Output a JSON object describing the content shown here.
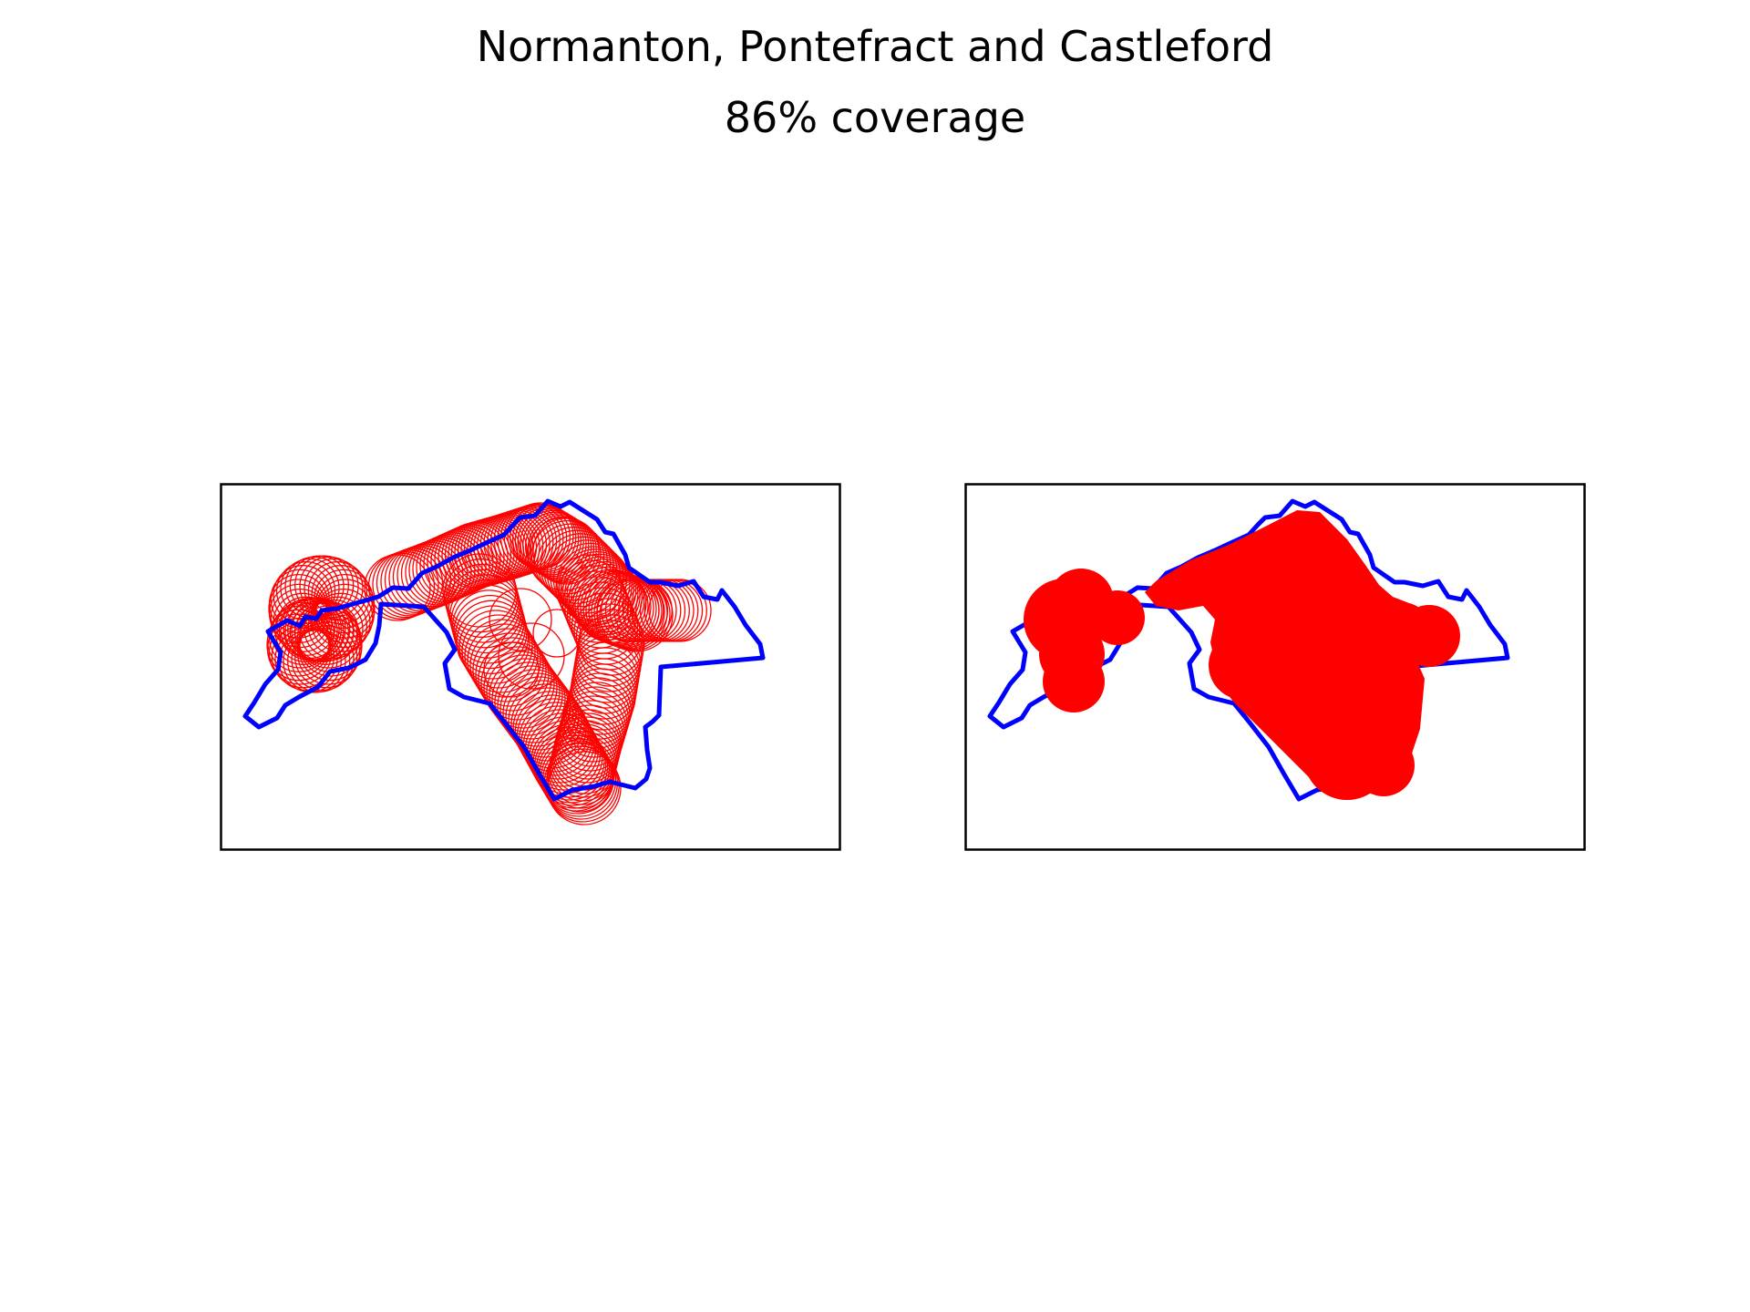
{
  "figure": {
    "title": "Normanton, Pontefract and Castleford",
    "subtitle": "86% coverage"
  },
  "colors": {
    "boundary": "#0000ff",
    "coverage": "#ff0000",
    "frame": "#000000",
    "background": "#ffffff"
  },
  "panels": [
    {
      "id": "left",
      "style": "circle-outlines"
    },
    {
      "id": "right",
      "style": "filled-union"
    }
  ],
  "chart_data": {
    "type": "map",
    "region": "Normanton, Pontefract and Castleford",
    "coverage_percent": 86,
    "panels": 2
  }
}
